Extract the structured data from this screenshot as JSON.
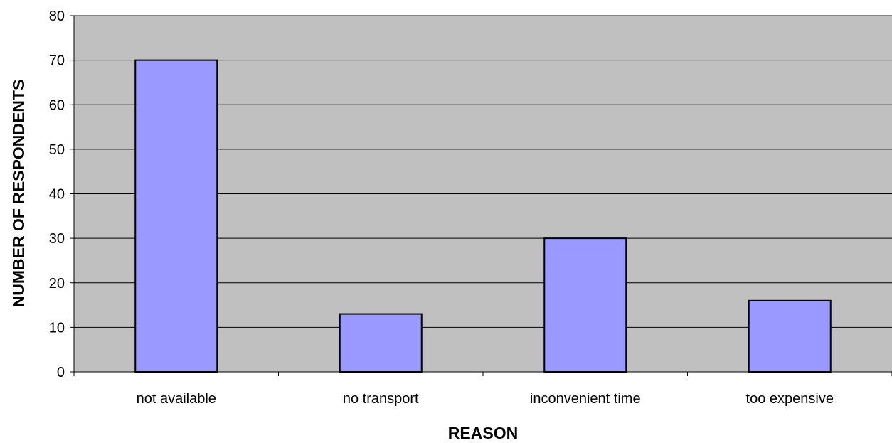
{
  "chart_data": {
    "type": "bar",
    "title": "",
    "xlabel": "REASON",
    "ylabel": "NUMBER OF RESPONDENTS",
    "categories": [
      "not available",
      "no transport",
      "inconvenient time",
      "too expensive"
    ],
    "values": [
      70,
      13,
      30,
      16
    ],
    "ylim": [
      0,
      80
    ],
    "yticks": [
      0,
      10,
      20,
      30,
      40,
      50,
      60,
      70,
      80
    ],
    "grid": true,
    "legend": "none",
    "colors": {
      "plot_background": "#c0c0c0",
      "bar_fill": "#9999ff",
      "bar_stroke": "#000000",
      "gridline": "#000000"
    }
  }
}
